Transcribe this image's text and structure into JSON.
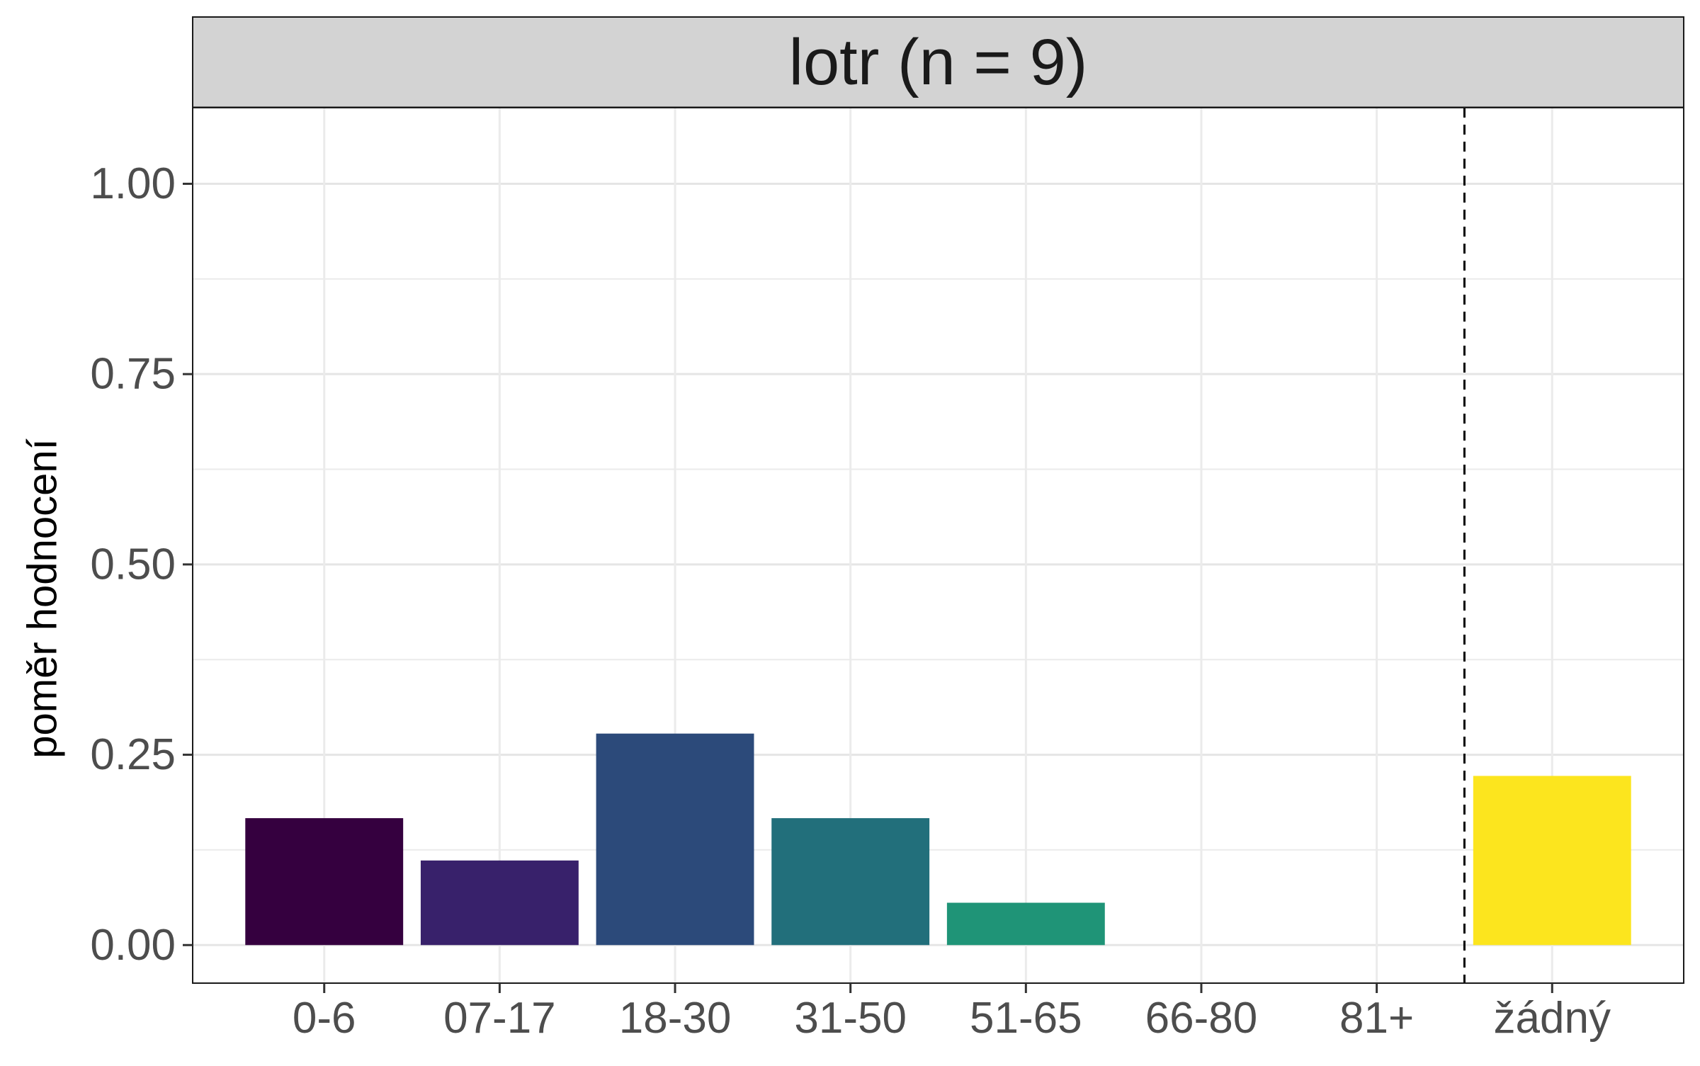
{
  "chart_data": {
    "type": "bar",
    "facet_title": "lotr (n = 9)",
    "title": "",
    "xlabel": "",
    "ylabel": "poměr hodnocení",
    "categories": [
      "0-6",
      "07-17",
      "18-30",
      "31-50",
      "51-65",
      "66-80",
      "81+",
      "žádný"
    ],
    "values": [
      0.1667,
      0.1111,
      0.2778,
      0.1667,
      0.0556,
      0,
      0,
      0.2222
    ],
    "colors": [
      "#35003f",
      "#38216b",
      "#2c4a7a",
      "#226f7b",
      "#1f9477",
      "#4dbb5d",
      "#a6d93a",
      "#fce51e"
    ],
    "yticks": [
      "0.00",
      "0.25",
      "0.50",
      "0.75",
      "1.00"
    ],
    "ylim": [
      -0.05,
      1.1
    ],
    "grid": true,
    "reference_line": {
      "style": "dashed",
      "position": "between 81+ and žádný"
    },
    "legend": "none"
  }
}
